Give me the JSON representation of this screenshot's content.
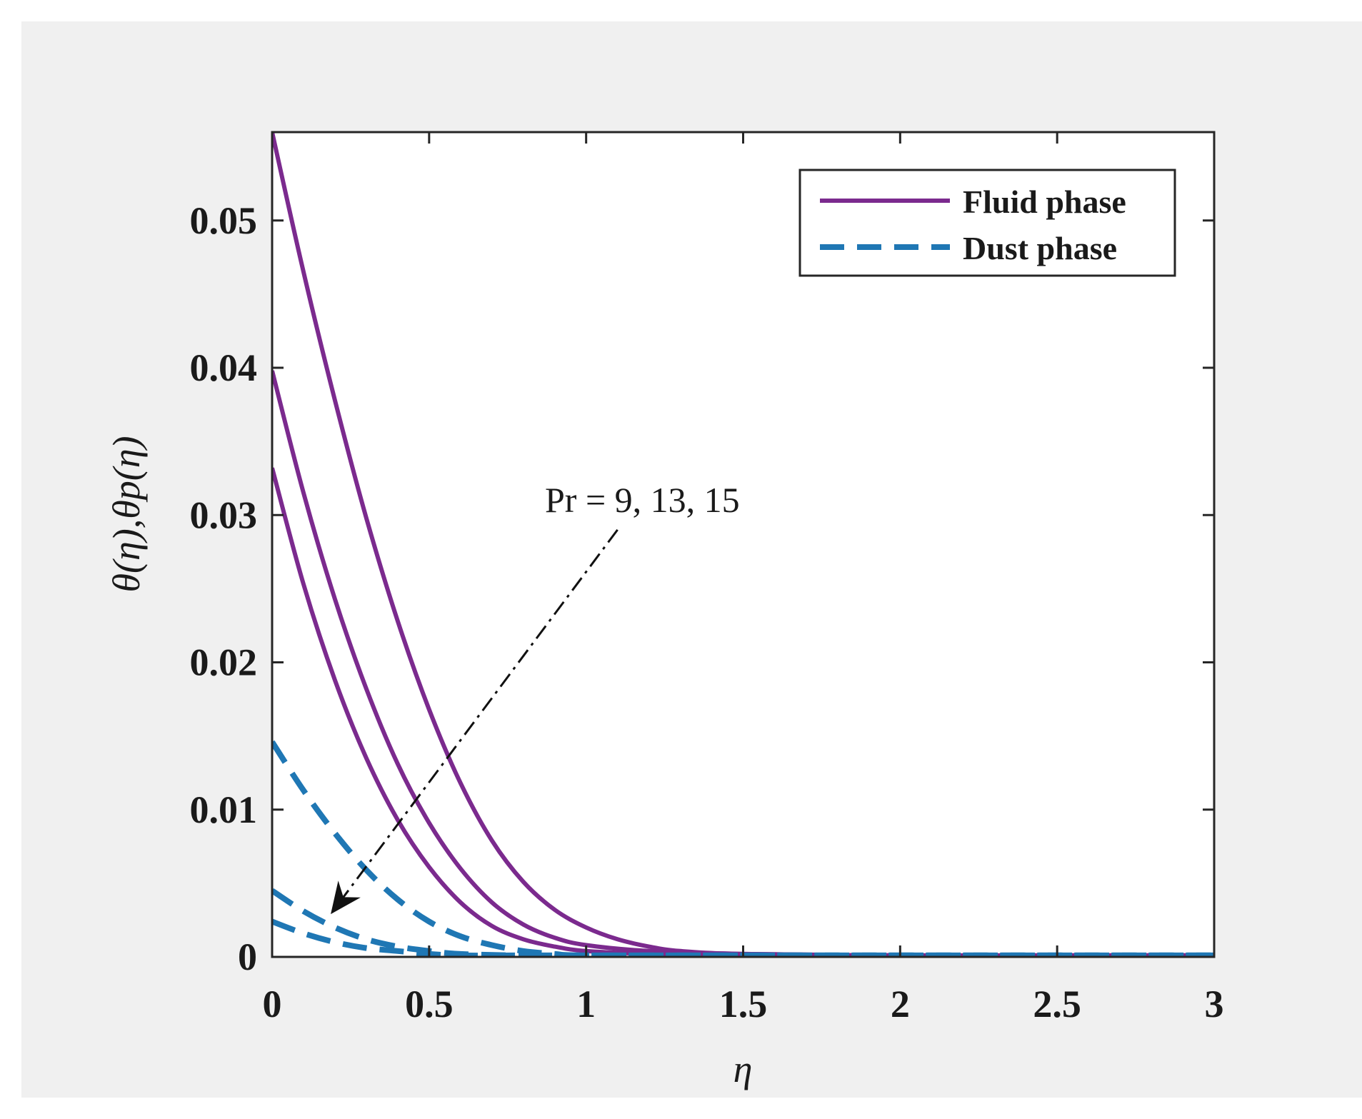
{
  "chart_data": {
    "type": "line",
    "xlabel": "η",
    "ylabel": "θ(η),θp(η)",
    "xlim": [
      0,
      3
    ],
    "ylim": [
      0,
      0.056
    ],
    "x_ticks": [
      0,
      0.5,
      1,
      1.5,
      2,
      2.5,
      3
    ],
    "x_tick_labels": [
      "0",
      "0.5",
      "1",
      "1.5",
      "2",
      "2.5",
      "3"
    ],
    "y_ticks": [
      0,
      0.01,
      0.02,
      0.03,
      0.04,
      0.05
    ],
    "y_tick_labels": [
      "0",
      "0.01",
      "0.02",
      "0.03",
      "0.04",
      "0.05"
    ],
    "grid": false,
    "legend": {
      "position": "top-right",
      "entries": [
        {
          "label": "Fluid phase",
          "style": "solid",
          "color": "#7b2a8e"
        },
        {
          "label": "Dust phase",
          "style": "dashed",
          "color": "#1f77b4"
        }
      ]
    },
    "annotation": {
      "text": "Pr = 9,  13,  15",
      "arrow_from": [
        1.1,
        0.029
      ],
      "arrow_to": [
        0.19,
        0.003
      ],
      "arrow_style": "dash-dot"
    },
    "series": [
      {
        "group": "Fluid phase",
        "style": "solid",
        "color": "#7b2a8e",
        "x": [
          0,
          0.1,
          0.2,
          0.3,
          0.4,
          0.5,
          0.6,
          0.7,
          0.8,
          0.9,
          1.0,
          1.1,
          1.2,
          1.3,
          1.5,
          2.0,
          2.5,
          3.0
        ],
        "values": [
          0.056,
          0.0465,
          0.0378,
          0.0298,
          0.0228,
          0.0168,
          0.0118,
          0.0079,
          0.0051,
          0.0032,
          0.002,
          0.0012,
          0.0007,
          0.0004,
          0.0002,
          0.0001,
          0.0001,
          0.0001
        ]
      },
      {
        "group": "Fluid phase",
        "style": "solid",
        "color": "#7b2a8e",
        "x": [
          0,
          0.1,
          0.2,
          0.3,
          0.4,
          0.5,
          0.6,
          0.7,
          0.8,
          0.9,
          1.0,
          1.2,
          1.5,
          2.0,
          2.5,
          3.0
        ],
        "values": [
          0.0398,
          0.0315,
          0.0243,
          0.0182,
          0.0131,
          0.0091,
          0.006,
          0.0037,
          0.0022,
          0.0013,
          0.0008,
          0.0004,
          0.0002,
          0.0001,
          0.0001,
          0.0001
        ]
      },
      {
        "group": "Fluid phase",
        "style": "solid",
        "color": "#7b2a8e",
        "x": [
          0,
          0.1,
          0.2,
          0.3,
          0.4,
          0.5,
          0.6,
          0.7,
          0.8,
          0.9,
          1.0,
          1.2,
          1.5,
          2.0,
          2.5,
          3.0
        ],
        "values": [
          0.0332,
          0.0253,
          0.0188,
          0.0135,
          0.0093,
          0.0061,
          0.0037,
          0.0021,
          0.0012,
          0.0007,
          0.0004,
          0.0002,
          0.0001,
          0.0001,
          0.0001,
          0.0001
        ]
      },
      {
        "group": "Dust phase",
        "style": "dashed",
        "color": "#1f77b4",
        "x": [
          0,
          0.1,
          0.2,
          0.3,
          0.4,
          0.5,
          0.6,
          0.7,
          0.8,
          0.9,
          1.0,
          1.5,
          2.0,
          2.5,
          3.0
        ],
        "values": [
          0.0146,
          0.0113,
          0.0084,
          0.0059,
          0.0039,
          0.0024,
          0.0014,
          0.0008,
          0.0004,
          0.0002,
          0.0001,
          0.0001,
          0.0001,
          0.0001,
          0.0001
        ]
      },
      {
        "group": "Dust phase",
        "style": "dashed",
        "color": "#1f77b4",
        "x": [
          0,
          0.1,
          0.2,
          0.3,
          0.4,
          0.5,
          0.6,
          0.8,
          1.0,
          1.5,
          2.0,
          2.5,
          3.0
        ],
        "values": [
          0.0045,
          0.0031,
          0.002,
          0.0012,
          0.0007,
          0.0004,
          0.0002,
          0.0001,
          0.0001,
          0.0001,
          0.0001,
          0.0001,
          0.0001
        ]
      },
      {
        "group": "Dust phase",
        "style": "dashed",
        "color": "#1f77b4",
        "x": [
          0,
          0.1,
          0.2,
          0.3,
          0.4,
          0.5,
          0.6,
          0.8,
          1.0,
          1.5,
          2.0,
          2.5,
          3.0
        ],
        "values": [
          0.0024,
          0.0016,
          0.001,
          0.0006,
          0.0004,
          0.0002,
          0.0001,
          0.0001,
          0.0001,
          0.0001,
          0.0001,
          0.0001,
          0.0001
        ]
      }
    ]
  }
}
